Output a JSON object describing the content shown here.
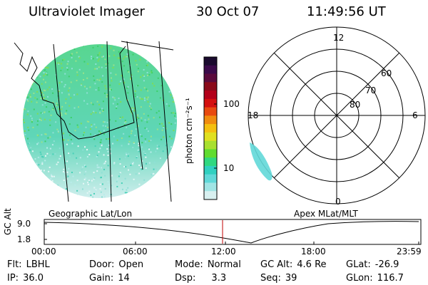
{
  "header": {
    "title": "Ultraviolet Imager",
    "date": "30 Oct 07",
    "time": "11:49:56 UT"
  },
  "left_panel": {
    "label": "Geographic Lat/Lon"
  },
  "right_panel": {
    "label": "Apex MLat/MLT",
    "mlt_labels": [
      "12",
      "18",
      "6",
      "0"
    ],
    "lat_labels": [
      "60",
      "70",
      "80"
    ]
  },
  "colorbar": {
    "unit_label": "photon cm⁻²s⁻¹",
    "ticks": [
      "100",
      "10"
    ],
    "colors": [
      "#1a0a2e",
      "#3b0a4a",
      "#5a0a3c",
      "#8a0a1a",
      "#b3001a",
      "#d41010",
      "#e84a10",
      "#f08c10",
      "#f4c010",
      "#e0e020",
      "#a8e030",
      "#60dc30",
      "#30d880",
      "#30d0c0",
      "#60d8d8",
      "#a0e4e4",
      "#d8f0f0"
    ]
  },
  "timeline": {
    "ylabel": "GC Alt",
    "y_ticks": [
      "9.0",
      "1.8"
    ],
    "x_ticks": [
      "00:00",
      "06:00",
      "12:00",
      "18:00",
      "23:59"
    ],
    "marker_color": "#c00000"
  },
  "info": {
    "flt_k": "Flt:",
    "flt_v": "LBHL",
    "ip_k": "IP:",
    "ip_v": "36.0",
    "door_k": "Door:",
    "door_v": "Open",
    "gain_k": "Gain:",
    "gain_v": "14",
    "mode_k": "Mode:",
    "mode_v": "Normal",
    "dsp_k": "Dsp:",
    "dsp_v": "3.3",
    "gcalt_k": "GC Alt:",
    "gcalt_v": "4.6 Re",
    "seq_k": "Seq:",
    "seq_v": "39",
    "glat_k": "GLat:",
    "glat_v": "-26.9",
    "glon_k": "GLon:",
    "glon_v": "116.7"
  }
}
